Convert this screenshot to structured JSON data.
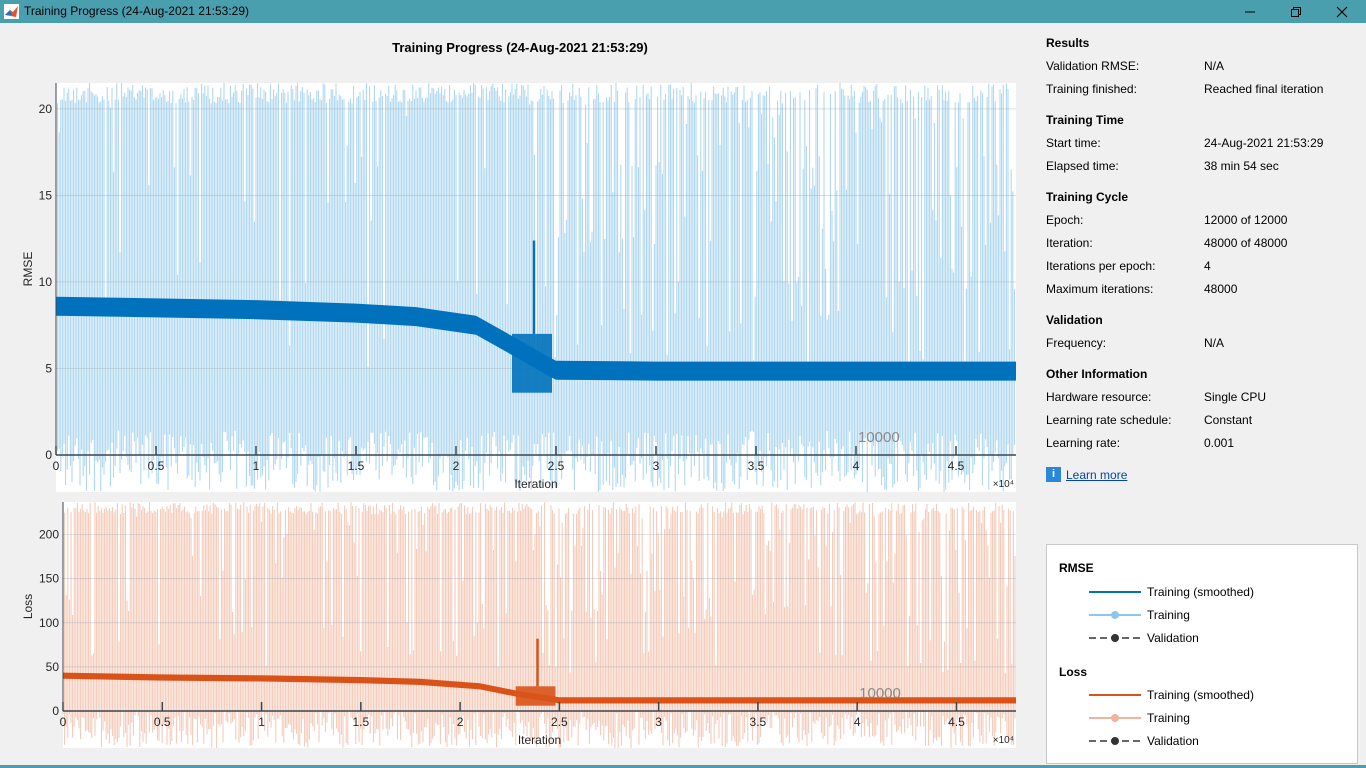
{
  "window": {
    "title": "Training Progress (24-Aug-2021 21:53:29)",
    "minimize_label": "minimize",
    "maximize_label": "restore",
    "close_label": "close"
  },
  "plot_title": "Training Progress (24-Aug-2021 21:53:29)",
  "results": {
    "heading": "Results",
    "rows": [
      {
        "key": "Validation RMSE:",
        "value": "N/A"
      },
      {
        "key": "Training finished:",
        "value": "Reached final iteration"
      }
    ]
  },
  "training_time": {
    "heading": "Training Time",
    "rows": [
      {
        "key": "Start time:",
        "value": "24-Aug-2021 21:53:29"
      },
      {
        "key": "Elapsed time:",
        "value": "38 min 54 sec"
      }
    ]
  },
  "training_cycle": {
    "heading": "Training Cycle",
    "rows": [
      {
        "key": "Epoch:",
        "value": "12000 of 12000"
      },
      {
        "key": "Iteration:",
        "value": "48000 of 48000"
      },
      {
        "key": "Iterations per epoch:",
        "value": "4"
      },
      {
        "key": "Maximum iterations:",
        "value": "48000"
      }
    ]
  },
  "validation": {
    "heading": "Validation",
    "rows": [
      {
        "key": "Frequency:",
        "value": "N/A"
      }
    ]
  },
  "other_info": {
    "heading": "Other Information",
    "rows": [
      {
        "key": "Hardware resource:",
        "value": "Single CPU"
      },
      {
        "key": "Learning rate schedule:",
        "value": "Constant"
      },
      {
        "key": "Learning rate:",
        "value": "0.001"
      }
    ]
  },
  "learn_more": "Learn more",
  "legend": {
    "rmse_title": "RMSE",
    "loss_title": "Loss",
    "training_smoothed": "Training (smoothed)",
    "training": "Training",
    "validation": "Validation"
  },
  "colors": {
    "rmse_dark": "#0072bd",
    "rmse_light": "#8cc6ea",
    "loss_dark": "#d95319",
    "loss_light": "#f0b49c",
    "validation": "#333333"
  },
  "chart_data": [
    {
      "type": "line",
      "ylabel": "RMSE",
      "xlabel": "Iteration",
      "x_multiplier": "×10⁴",
      "xlim": [
        0,
        4.8
      ],
      "ylim": [
        0,
        21.5
      ],
      "x_ticks": [
        "0",
        "0.5",
        "1",
        "1.5",
        "2",
        "2.5",
        "3",
        "3.5",
        "4",
        "4.5"
      ],
      "y_ticks": [
        "0",
        "5",
        "10",
        "15",
        "20"
      ],
      "annotation": "10000",
      "series": [
        {
          "name": "Training (smoothed)",
          "x": [
            0,
            0.5,
            1.0,
            1.5,
            1.8,
            2.1,
            2.3,
            2.45,
            2.5,
            3.0,
            3.5,
            4.0,
            4.5,
            4.8
          ],
          "y": [
            8.6,
            8.5,
            8.4,
            8.2,
            8.0,
            7.5,
            6.2,
            5.2,
            4.9,
            4.85,
            4.85,
            4.85,
            4.85,
            4.85
          ]
        }
      ]
    },
    {
      "type": "line",
      "ylabel": "Loss",
      "xlabel": "Iteration",
      "x_multiplier": "×10⁴",
      "xlim": [
        0,
        4.8
      ],
      "ylim": [
        0,
        237
      ],
      "x_ticks": [
        "0",
        "0.5",
        "1",
        "1.5",
        "2",
        "2.5",
        "3",
        "3.5",
        "4",
        "4.5"
      ],
      "y_ticks": [
        "0",
        "50",
        "100",
        "150",
        "200"
      ],
      "annotation": "10000",
      "series": [
        {
          "name": "Training (smoothed)",
          "x": [
            0,
            0.5,
            1.0,
            1.5,
            1.8,
            2.1,
            2.3,
            2.45,
            2.5,
            3.0,
            3.5,
            4.0,
            4.5,
            4.8
          ],
          "y": [
            40,
            38,
            37,
            35,
            33,
            28,
            19,
            14,
            12,
            12,
            12,
            12,
            12,
            12
          ]
        }
      ]
    }
  ]
}
